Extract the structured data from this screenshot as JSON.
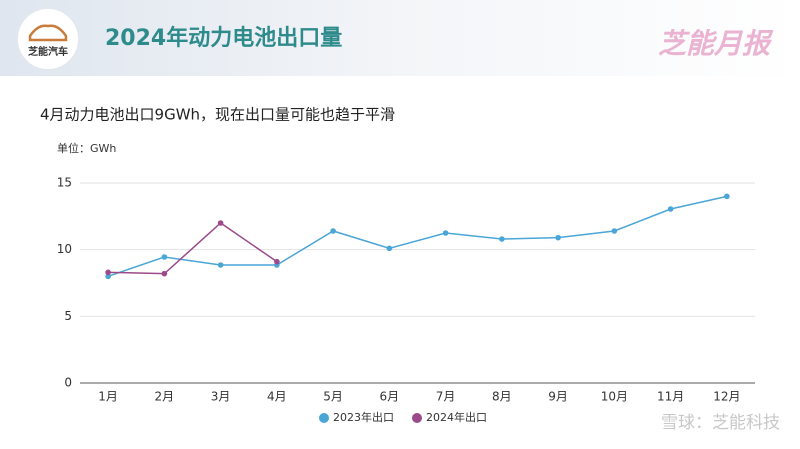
{
  "header": {
    "logo_text": "芝能汽车",
    "title": "2024年动力电池出口量",
    "brand": "芝能月报"
  },
  "chart_data": {
    "type": "line",
    "title": "4月动力电池出口9GWh，现在出口量可能也趋于平滑",
    "y_label": "单位：GWh",
    "categories": [
      "1月",
      "2月",
      "3月",
      "4月",
      "5月",
      "6月",
      "7月",
      "8月",
      "9月",
      "10月",
      "11月",
      "12月"
    ],
    "series": [
      {
        "name": "2023年出口",
        "color": "#4aa6d6",
        "values": [
          8.0,
          9.45,
          8.85,
          8.85,
          11.4,
          10.1,
          11.25,
          10.8,
          10.9,
          11.4,
          13.05,
          14.0
        ]
      },
      {
        "name": "2024年出口",
        "color": "#9b4a8a",
        "values": [
          8.3,
          8.2,
          12.0,
          9.1,
          null,
          null,
          null,
          null,
          null,
          null,
          null,
          null
        ]
      }
    ],
    "ylim": [
      0,
      15
    ],
    "yticks": [
      0,
      5,
      10,
      15
    ],
    "grid": true,
    "legend": "bottom"
  },
  "footer": {
    "watermark": "雪球：芝能科技"
  }
}
